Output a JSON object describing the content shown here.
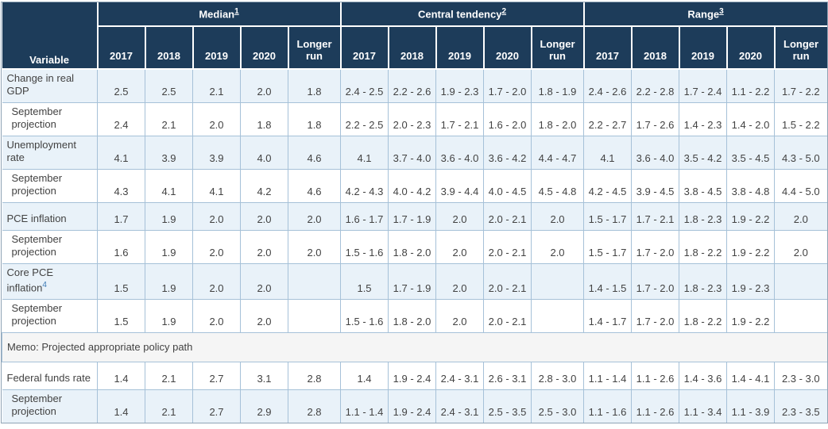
{
  "colors": {
    "header_bg": "#1d3c5a",
    "header_text": "#ffffff",
    "row_blue": "#e9f2f9",
    "row_white": "#ffffff",
    "memo_bg": "#f5f5f5",
    "cell_border": "#a6c1d8",
    "outer_border": "#8fa3b5",
    "body_text": "#424242",
    "footnote_link": "#3d7ab5"
  },
  "table": {
    "variable_header": "Variable",
    "groups": [
      {
        "label": "Median",
        "sup": "1"
      },
      {
        "label": "Central tendency",
        "sup": "2"
      },
      {
        "label": "Range",
        "sup": "3"
      }
    ],
    "year_headers": [
      "2017",
      "2018",
      "2019",
      "2020",
      "Longer run"
    ],
    "rows": [
      {
        "type": "data",
        "shade": "blue",
        "indent": false,
        "label": "Change in real GDP",
        "sup": "",
        "median": [
          "2.5",
          "2.5",
          "2.1",
          "2.0",
          "1.8"
        ],
        "central": [
          "2.4 - 2.5",
          "2.2 - 2.6",
          "1.9 - 2.3",
          "1.7 - 2.0",
          "1.8 - 1.9"
        ],
        "range": [
          "2.4 - 2.6",
          "2.2 - 2.8",
          "1.7 - 2.4",
          "1.1 - 2.2",
          "1.7 - 2.2"
        ]
      },
      {
        "type": "data",
        "shade": "white",
        "indent": true,
        "label": "September projection",
        "sup": "",
        "median": [
          "2.4",
          "2.1",
          "2.0",
          "1.8",
          "1.8"
        ],
        "central": [
          "2.2 - 2.5",
          "2.0 - 2.3",
          "1.7 - 2.1",
          "1.6 - 2.0",
          "1.8 - 2.0"
        ],
        "range": [
          "2.2 - 2.7",
          "1.7 - 2.6",
          "1.4 - 2.3",
          "1.4 - 2.0",
          "1.5 - 2.2"
        ]
      },
      {
        "type": "data",
        "shade": "blue",
        "indent": false,
        "label": "Unemployment rate",
        "sup": "",
        "median": [
          "4.1",
          "3.9",
          "3.9",
          "4.0",
          "4.6"
        ],
        "central": [
          "4.1",
          "3.7 - 4.0",
          "3.6 - 4.0",
          "3.6 - 4.2",
          "4.4 - 4.7"
        ],
        "range": [
          "4.1",
          "3.6 - 4.0",
          "3.5 - 4.2",
          "3.5 - 4.5",
          "4.3 - 5.0"
        ]
      },
      {
        "type": "data",
        "shade": "white",
        "indent": true,
        "label": "September projection",
        "sup": "",
        "median": [
          "4.3",
          "4.1",
          "4.1",
          "4.2",
          "4.6"
        ],
        "central": [
          "4.2 - 4.3",
          "4.0 - 4.2",
          "3.9 - 4.4",
          "4.0 - 4.5",
          "4.5 - 4.8"
        ],
        "range": [
          "4.2 - 4.5",
          "3.9 - 4.5",
          "3.8 - 4.5",
          "3.8 - 4.8",
          "4.4 - 5.0"
        ]
      },
      {
        "type": "data",
        "shade": "blue",
        "indent": false,
        "label": "PCE inflation",
        "sup": "",
        "median": [
          "1.7",
          "1.9",
          "2.0",
          "2.0",
          "2.0"
        ],
        "central": [
          "1.6 - 1.7",
          "1.7 - 1.9",
          "2.0",
          "2.0 - 2.1",
          "2.0"
        ],
        "range": [
          "1.5 - 1.7",
          "1.7 - 2.1",
          "1.8 - 2.3",
          "1.9 - 2.2",
          "2.0"
        ]
      },
      {
        "type": "data",
        "shade": "white",
        "indent": true,
        "label": "September projection",
        "sup": "",
        "median": [
          "1.6",
          "1.9",
          "2.0",
          "2.0",
          "2.0"
        ],
        "central": [
          "1.5 - 1.6",
          "1.8 - 2.0",
          "2.0",
          "2.0 - 2.1",
          "2.0"
        ],
        "range": [
          "1.5 - 1.7",
          "1.7 - 2.0",
          "1.8 - 2.2",
          "1.9 - 2.2",
          "2.0"
        ]
      },
      {
        "type": "data",
        "shade": "blue",
        "indent": false,
        "label": "Core PCE inflation",
        "sup": "4",
        "median": [
          "1.5",
          "1.9",
          "2.0",
          "2.0",
          ""
        ],
        "central": [
          "1.5",
          "1.7 - 1.9",
          "2.0",
          "2.0 - 2.1",
          ""
        ],
        "range": [
          "1.4 - 1.5",
          "1.7 - 2.0",
          "1.8 - 2.3",
          "1.9 - 2.3",
          ""
        ]
      },
      {
        "type": "data",
        "shade": "white",
        "indent": true,
        "label": "September projection",
        "sup": "",
        "median": [
          "1.5",
          "1.9",
          "2.0",
          "2.0",
          ""
        ],
        "central": [
          "1.5 - 1.6",
          "1.8 - 2.0",
          "2.0",
          "2.0 - 2.1",
          ""
        ],
        "range": [
          "1.4 - 1.7",
          "1.7 - 2.0",
          "1.8 - 2.2",
          "1.9 - 2.2",
          ""
        ]
      },
      {
        "type": "memo",
        "label": "Memo: Projected appropriate policy path"
      },
      {
        "type": "data",
        "shade": "white",
        "indent": false,
        "label": "Federal funds rate",
        "sup": "",
        "median": [
          "1.4",
          "2.1",
          "2.7",
          "3.1",
          "2.8"
        ],
        "central": [
          "1.4",
          "1.9 - 2.4",
          "2.4 - 3.1",
          "2.6 - 3.1",
          "2.8 - 3.0"
        ],
        "range": [
          "1.1 - 1.4",
          "1.1 - 2.6",
          "1.4 - 3.6",
          "1.4 - 4.1",
          "2.3 - 3.0"
        ]
      },
      {
        "type": "data",
        "shade": "blue",
        "indent": true,
        "label": "September projection",
        "sup": "",
        "median": [
          "1.4",
          "2.1",
          "2.7",
          "2.9",
          "2.8"
        ],
        "central": [
          "1.1 - 1.4",
          "1.9 - 2.4",
          "2.4 - 3.1",
          "2.5 - 3.5",
          "2.5 - 3.0"
        ],
        "range": [
          "1.1 - 1.6",
          "1.1 - 2.6",
          "1.1 - 3.4",
          "1.1 - 3.9",
          "2.3 - 3.5"
        ]
      }
    ]
  }
}
